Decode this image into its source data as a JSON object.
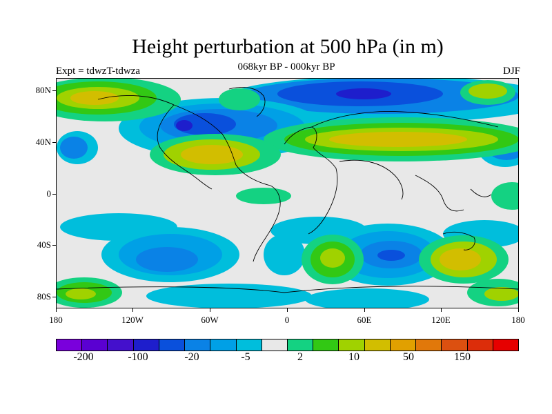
{
  "header": {
    "title": "Height perturbation at 500 hPa (in m)",
    "subtitle": "068kyr BP - 000kyr BP",
    "left_label": "Expt = tdwzT-tdwza",
    "right_label": "DJF"
  },
  "map": {
    "projection": "cylindrical equidistant",
    "lat_range": [
      -90,
      90
    ],
    "lon_range": [
      -180,
      180
    ],
    "y_ticks": [
      "80N",
      "40N",
      "0",
      "40S",
      "80S"
    ],
    "x_ticks": [
      "180",
      "120W",
      "60W",
      "0",
      "60E",
      "120E",
      "180"
    ]
  },
  "colorbar": {
    "colors": [
      "#7a00dc",
      "#5a00d2",
      "#4410cc",
      "#1e1ecc",
      "#0a50dc",
      "#0a82e6",
      "#00a0e6",
      "#00bedc",
      "#e8e8e8",
      "#14d282",
      "#32c814",
      "#a0d200",
      "#d2be00",
      "#e1a000",
      "#e1780a",
      "#dc5010",
      "#dc2d0a",
      "#e60000"
    ],
    "labels": [
      "-200",
      "-100",
      "-20",
      "-5",
      "2",
      "10",
      "50",
      "150"
    ]
  }
}
